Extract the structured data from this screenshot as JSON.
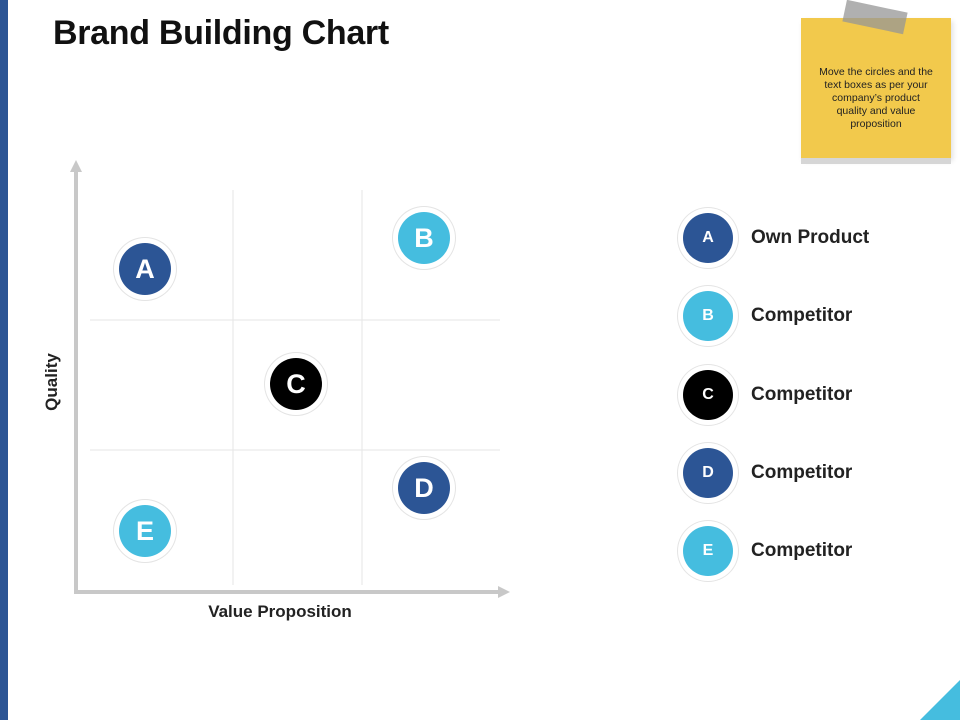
{
  "title": "Brand Building Chart",
  "note": {
    "text": "Move the circles and the text boxes as per your company’s product  quality and value proposition"
  },
  "colors": {
    "dark_blue": "#2c5595",
    "light_blue": "#45bddf",
    "black": "#000000",
    "note_yellow": "#f2c94c"
  },
  "chart": {
    "x_axis_label": "Value Proposition",
    "y_axis_label": "Quality",
    "grid": "3x3"
  },
  "markers": [
    {
      "letter": "A",
      "color": "#2c5595",
      "value_column": 1,
      "quality_row": 3
    },
    {
      "letter": "B",
      "color": "#45bddf",
      "value_column": 3,
      "quality_row": 3
    },
    {
      "letter": "C",
      "color": "#000000",
      "value_column": 2,
      "quality_row": 2
    },
    {
      "letter": "D",
      "color": "#2c5595",
      "value_column": 3,
      "quality_row": 1
    },
    {
      "letter": "E",
      "color": "#45bddf",
      "value_column": 1,
      "quality_row": 1
    }
  ],
  "legend": [
    {
      "letter": "A",
      "label": "Own Product",
      "color": "#2c5595"
    },
    {
      "letter": "B",
      "label": "Competitor",
      "color": "#45bddf"
    },
    {
      "letter": "C",
      "label": "Competitor",
      "color": "#000000"
    },
    {
      "letter": "D",
      "label": "Competitor",
      "color": "#2c5595"
    },
    {
      "letter": "E",
      "label": "Competitor",
      "color": "#45bddf"
    }
  ]
}
